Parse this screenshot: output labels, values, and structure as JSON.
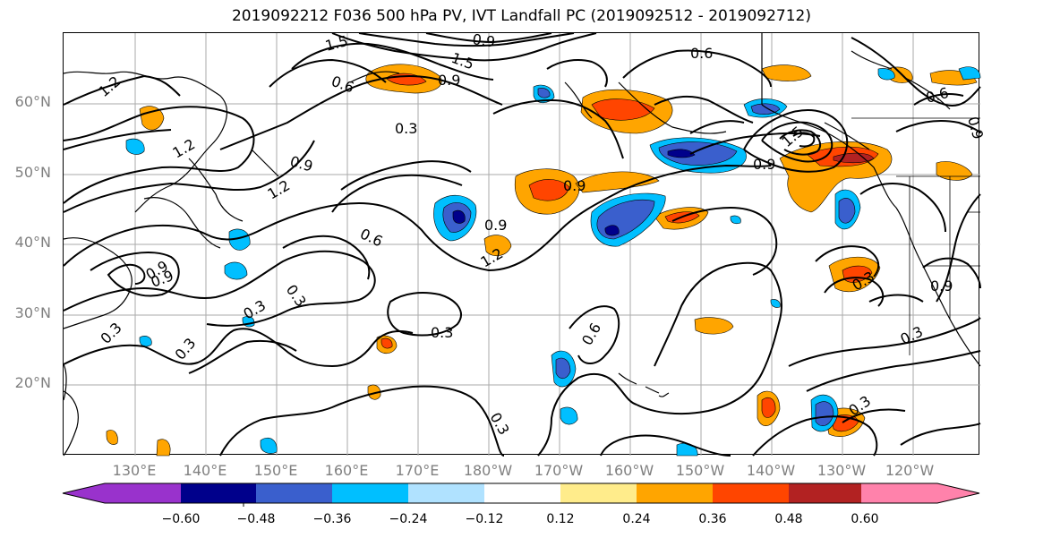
{
  "title": "2019092212 F036 500 hPa PV, IVT Landfall PC (2019092512 - 2019092712)",
  "lat_labels": [
    "60°N",
    "50°N",
    "40°N",
    "30°N",
    "20°N"
  ],
  "lon_labels": [
    "130°E",
    "140°E",
    "150°E",
    "160°E",
    "170°E",
    "180°W",
    "170°W",
    "160°W",
    "150°W",
    "140°W",
    "130°W",
    "120°W"
  ],
  "colorbar": {
    "ticks": [
      "−0.60",
      "−0.48",
      "−0.36",
      "−0.24",
      "−0.12",
      "0.12",
      "0.24",
      "0.36",
      "0.48",
      "0.60"
    ],
    "colors": [
      "#9932CC",
      "#00008B",
      "#3A5FCD",
      "#00BFFF",
      "#B0E2FF",
      "#FFFFFF",
      "#FFEC8B",
      "#FFA500",
      "#FF4500",
      "#B22222",
      "#FF82AB"
    ]
  },
  "contour_labels": [
    "1.5",
    "0.9",
    "1.5",
    "0.6",
    "0.9",
    "0.6",
    "1.2",
    "0.3",
    "1.2",
    "0.9",
    "0.9",
    "1.5",
    "1.2",
    "0.9",
    "0.9",
    "0.6",
    "0.9",
    "0.3",
    "0.3",
    "0.3",
    "1.2",
    "0.9",
    "0.3",
    "0.3",
    "0.6",
    "0.3",
    "0.3",
    "0.6",
    "0.9",
    "0.3",
    "0.9",
    "0.3"
  ]
}
